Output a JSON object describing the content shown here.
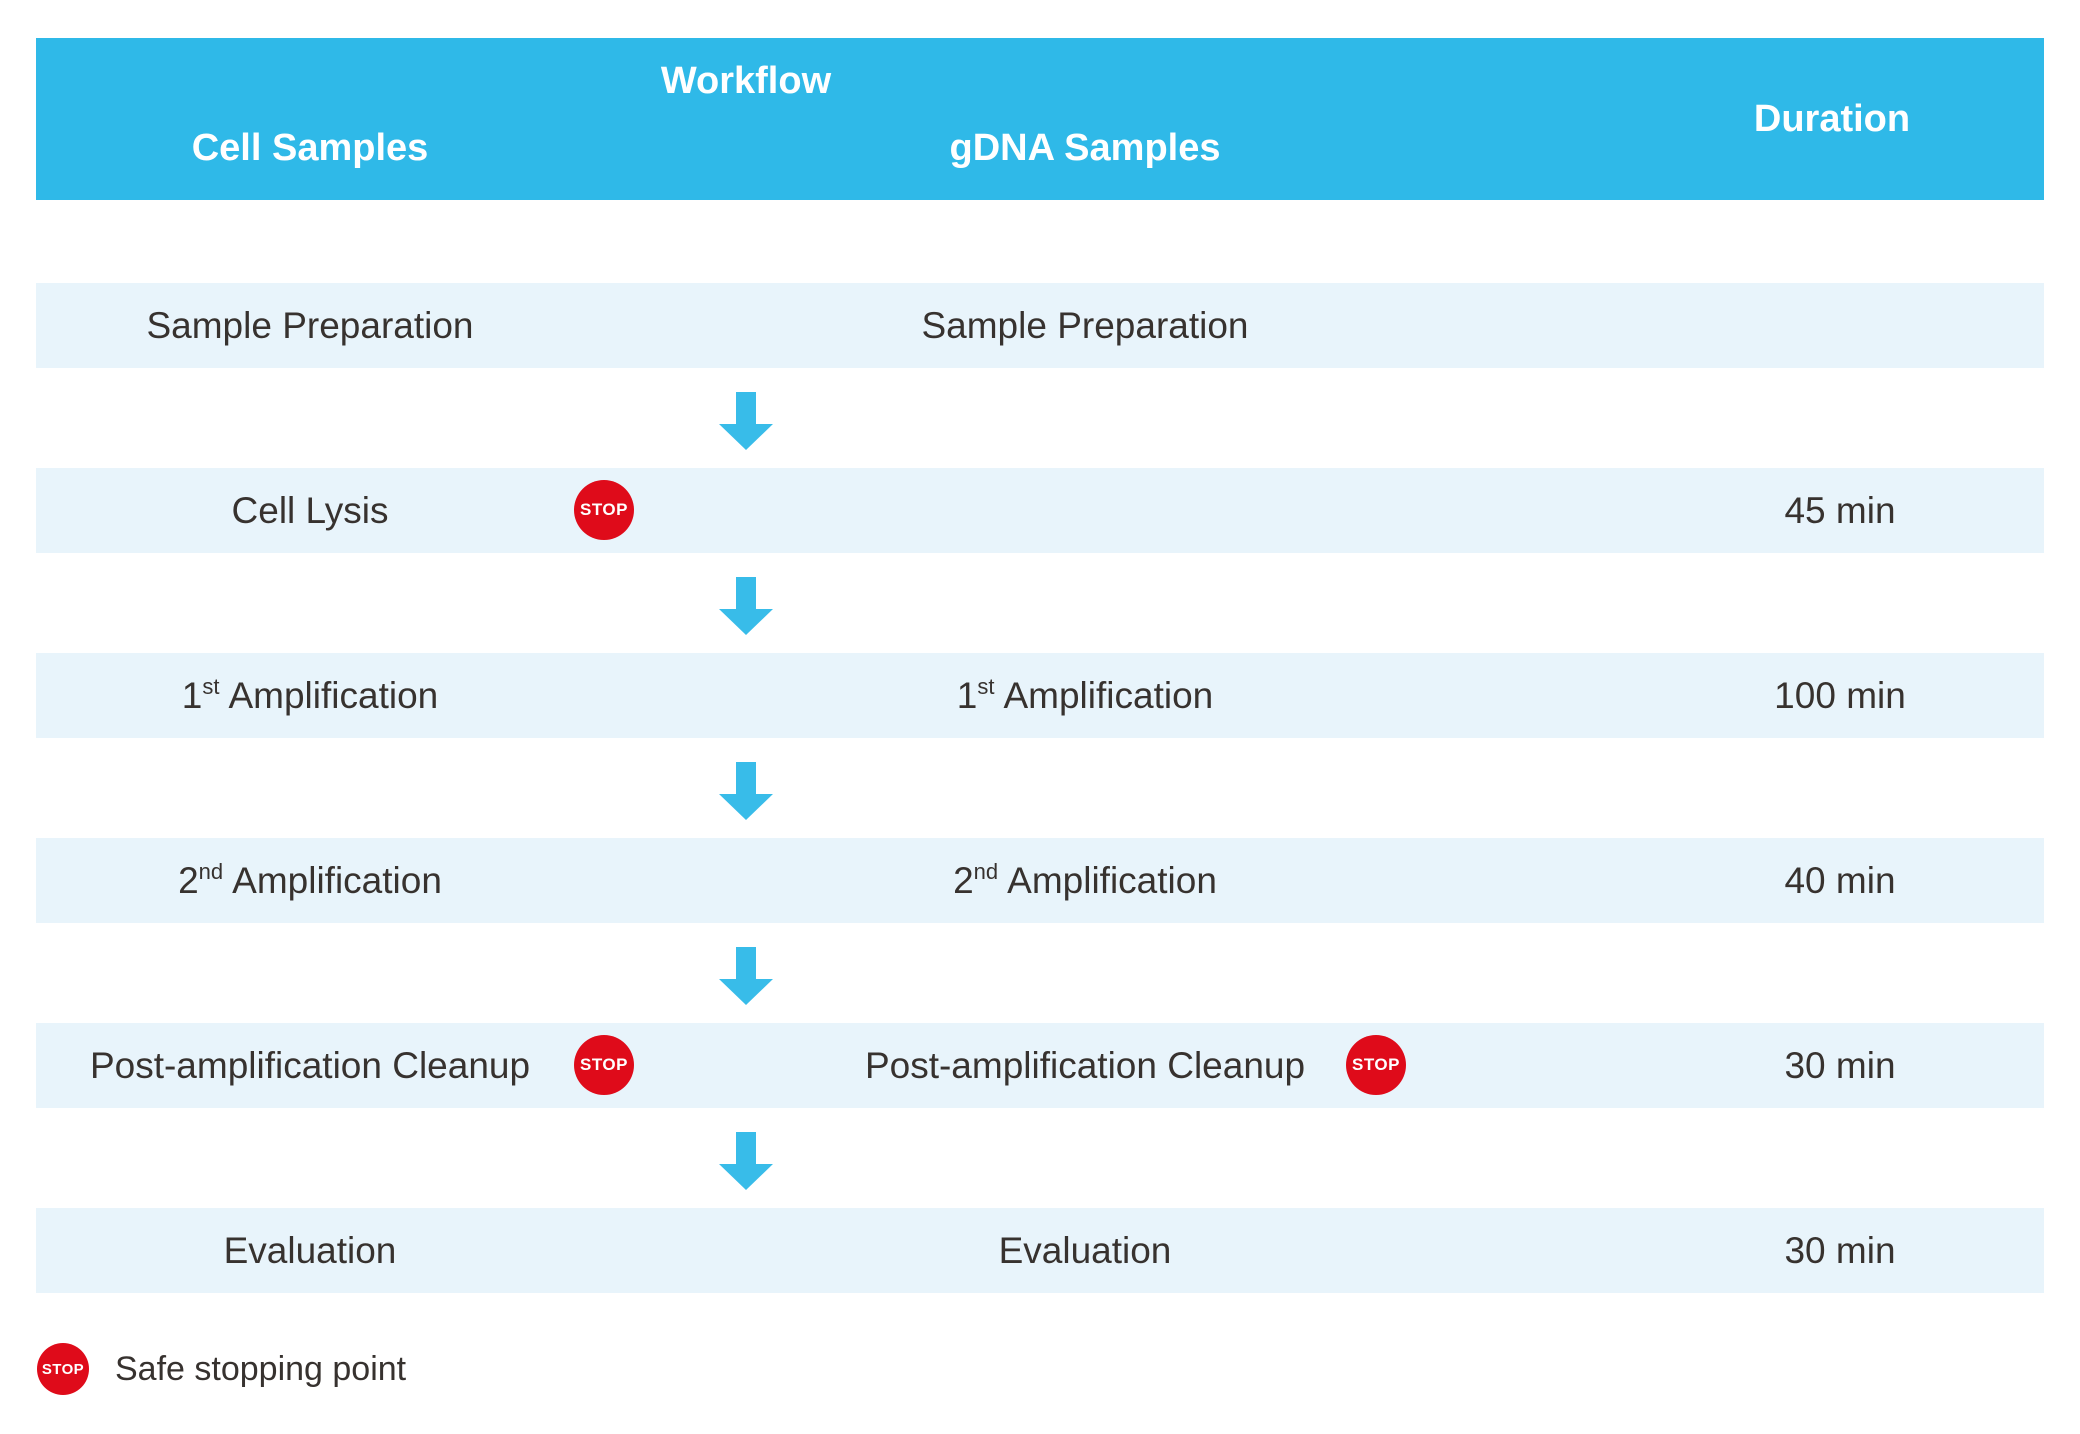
{
  "colors": {
    "header_bg": "#2FB9E8",
    "row_bg": "#E8F4FB",
    "arrow": "#38BCE9",
    "stop_red": "#DF0B1A",
    "text_dark": "#37322F",
    "header_text": "#FFFFFF"
  },
  "header": {
    "workflow_label": "Workflow",
    "cell_samples_label": "Cell Samples",
    "gdna_samples_label": "gDNA Samples",
    "duration_label": "Duration"
  },
  "stop_label": "STOP",
  "rows": [
    {
      "cell_text": "Sample Preparation",
      "gdna_text": "Sample Preparation",
      "duration": ""
    },
    {
      "cell_text": "Cell Lysis",
      "gdna_text": "",
      "duration": "45 min"
    },
    {
      "cell_num": "1",
      "cell_sup": "st",
      "cell_rest": "Amplification",
      "gdna_num": "1",
      "gdna_sup": "st",
      "gdna_rest": "Amplification",
      "duration": "100 min"
    },
    {
      "cell_num": "2",
      "cell_sup": "nd",
      "cell_rest": "Amplification",
      "gdna_num": "2",
      "gdna_sup": "nd",
      "gdna_rest": "Amplification",
      "duration": "40 min"
    },
    {
      "cell_text": "Post-amplification Cleanup",
      "gdna_text": "Post-amplification Cleanup",
      "duration": "30 min"
    },
    {
      "cell_text": "Evaluation",
      "gdna_text": "Evaluation",
      "duration": "30 min"
    }
  ],
  "legend": {
    "text": "Safe stopping point"
  }
}
